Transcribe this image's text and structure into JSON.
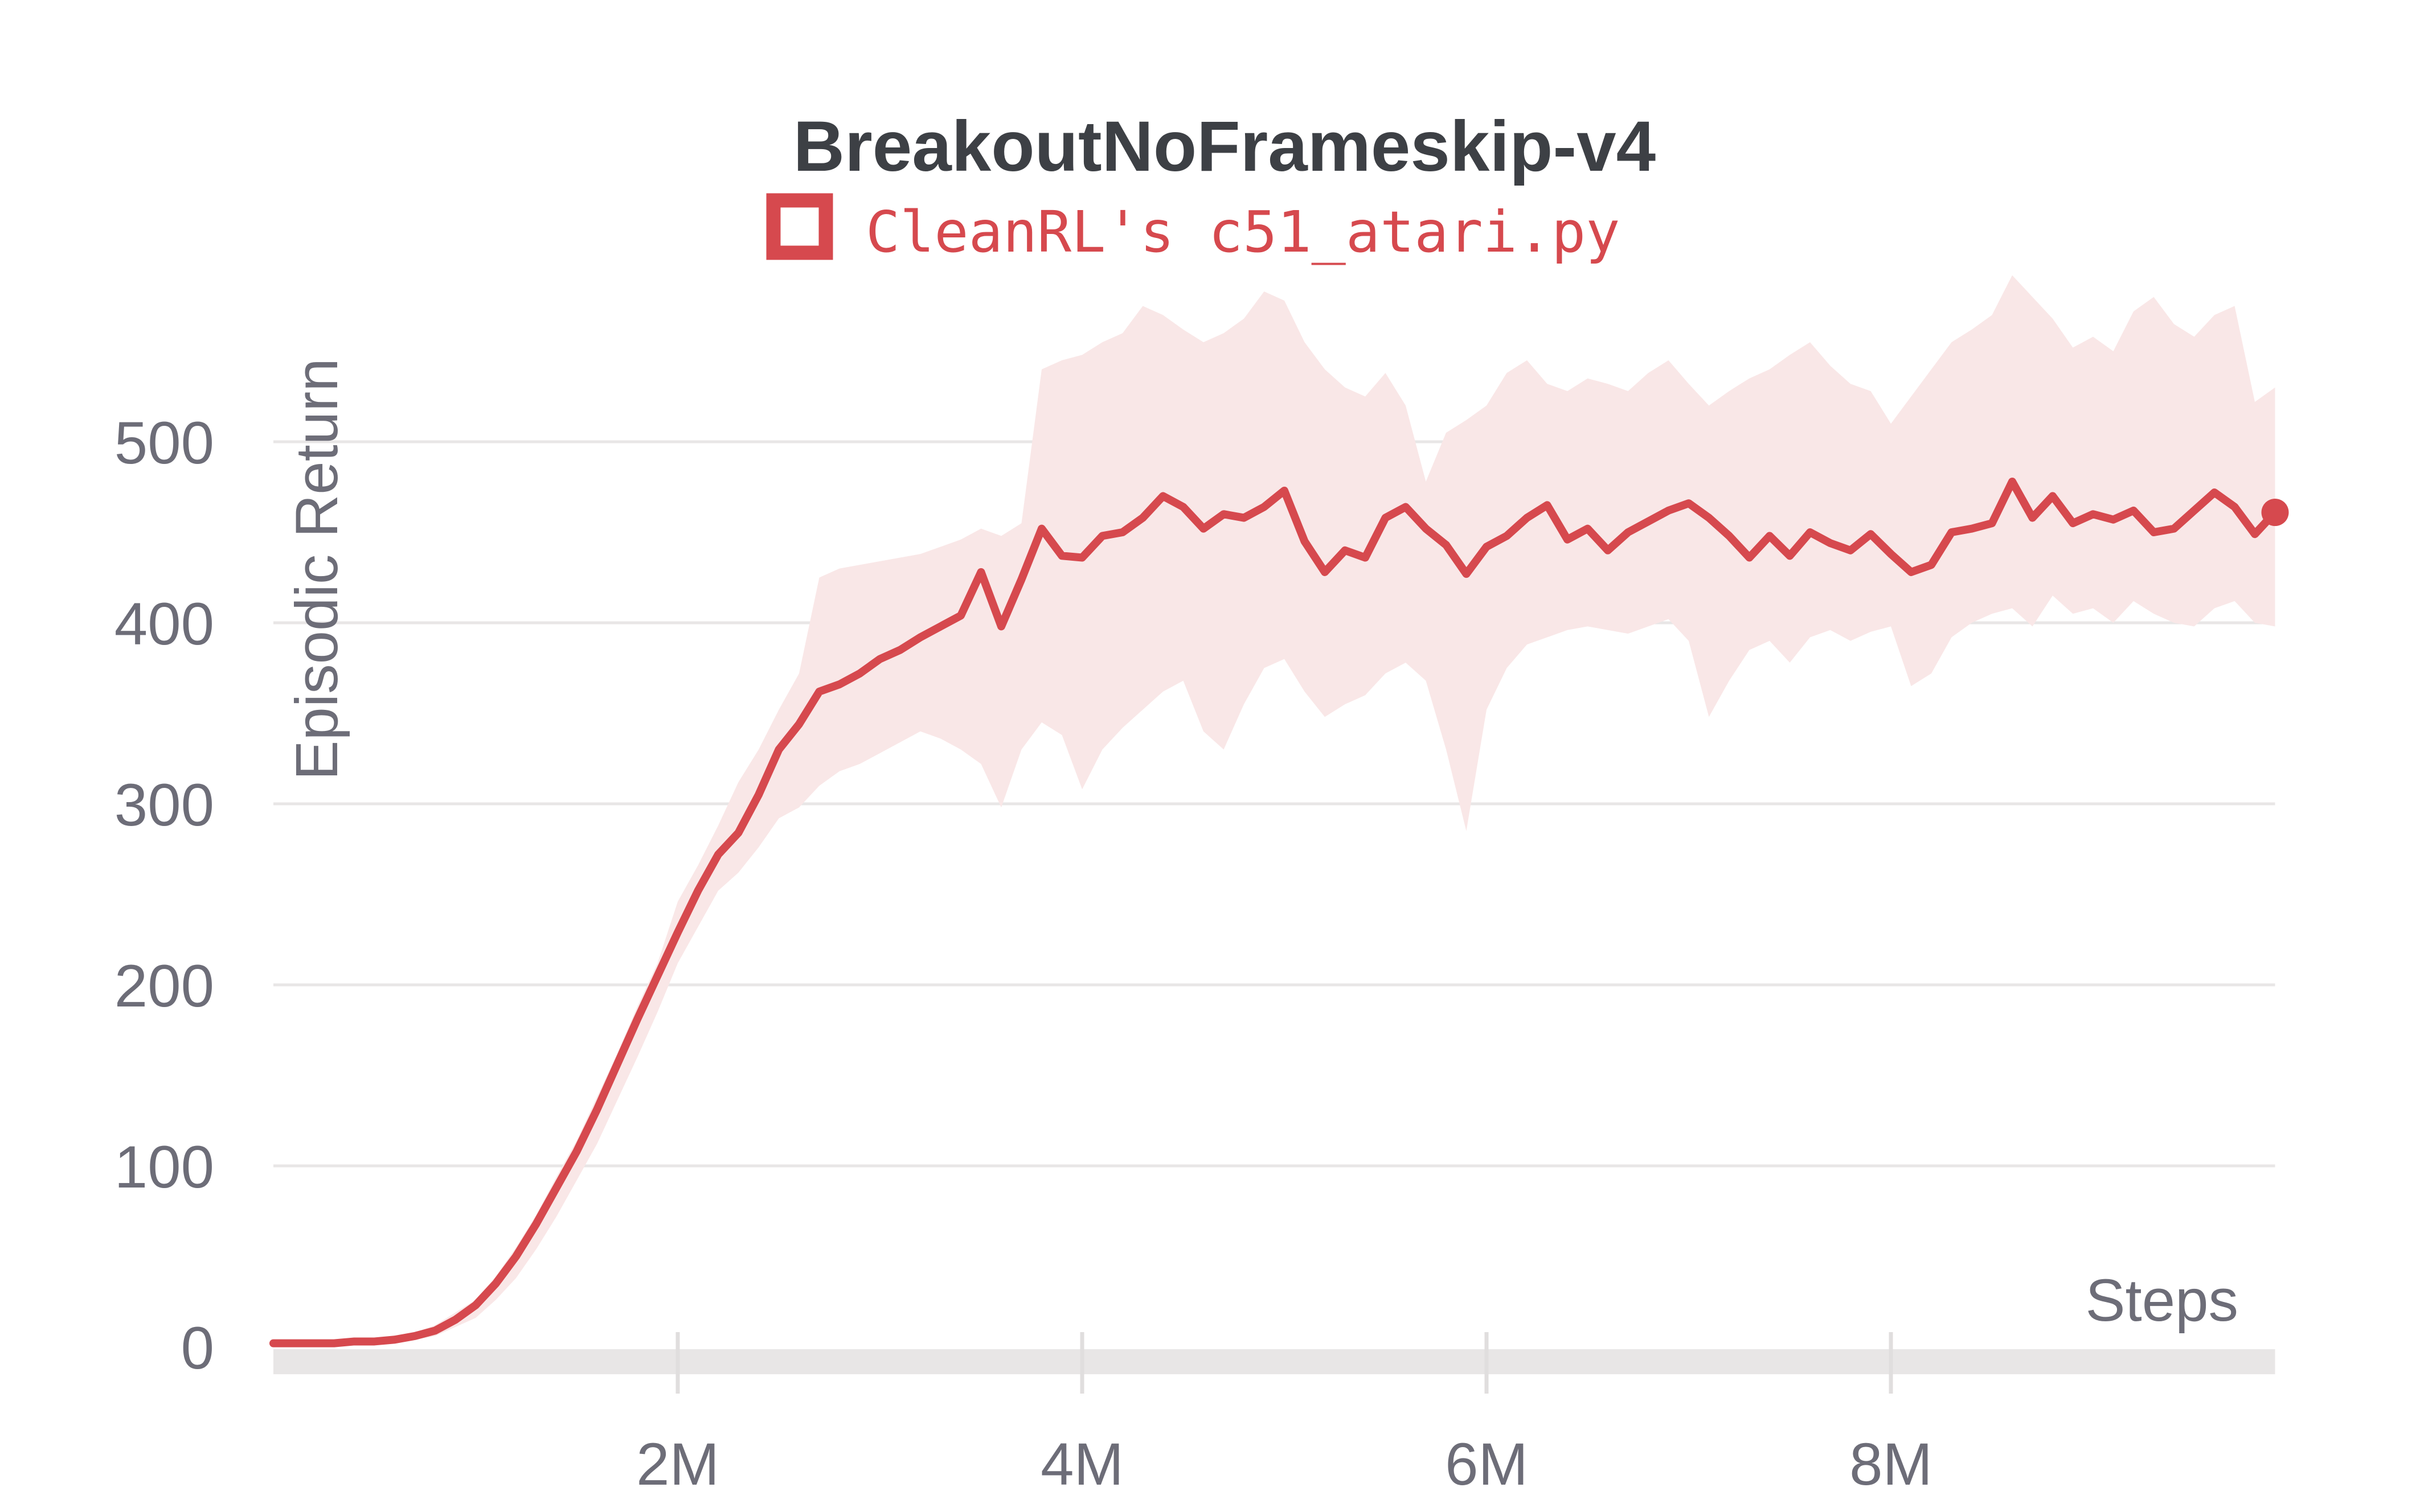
{
  "page": {
    "background": "#ffffff"
  },
  "chart_data": {
    "type": "line",
    "title": "BreakoutNoFrameskip-v4",
    "legend": {
      "label": "CleanRL's c51_atari.py",
      "marker": "hollow-square",
      "color": "#d6494e",
      "position": "top-center"
    },
    "xlabel": "Steps",
    "ylabel": "Episodic Return",
    "grid": "horizontal",
    "x_unit": "steps (millions)",
    "xlim_m": [
      0,
      10.3
    ],
    "ylim": [
      0,
      600
    ],
    "x_ticks": [
      {
        "value_m": 2,
        "label": "2M"
      },
      {
        "value_m": 4,
        "label": "4M"
      },
      {
        "value_m": 6,
        "label": "6M"
      },
      {
        "value_m": 8,
        "label": "8M"
      }
    ],
    "y_ticks": [
      {
        "value": 0,
        "label": "0"
      },
      {
        "value": 100,
        "label": "100"
      },
      {
        "value": 200,
        "label": "200"
      },
      {
        "value": 300,
        "label": "300"
      },
      {
        "value": 400,
        "label": "400"
      },
      {
        "value": 500,
        "label": "500"
      }
    ],
    "colors": {
      "line": "#d6494e",
      "band": "#f9e7e7",
      "grid": "#e8e6e6",
      "spine": "#e8e6e6",
      "tick_text": "#6d6d78",
      "title_text": "#3d4045"
    },
    "series": {
      "name": "CleanRL's c51_atari.py",
      "smoothed_mean_with_confidence_band": true,
      "x_m": [
        0.0,
        0.1,
        0.2,
        0.3,
        0.4,
        0.5,
        0.6,
        0.7,
        0.8,
        0.9,
        1.0,
        1.1,
        1.2,
        1.3,
        1.4,
        1.5,
        1.6,
        1.7,
        1.8,
        1.9,
        2.0,
        2.1,
        2.2,
        2.3,
        2.4,
        2.5,
        2.6,
        2.7,
        2.8,
        2.9,
        3.0,
        3.1,
        3.2,
        3.3,
        3.4,
        3.5,
        3.6,
        3.7,
        3.8,
        3.9,
        4.0,
        4.1,
        4.2,
        4.3,
        4.4,
        4.5,
        4.6,
        4.7,
        4.8,
        4.9,
        5.0,
        5.1,
        5.2,
        5.3,
        5.4,
        5.5,
        5.6,
        5.7,
        5.8,
        5.9,
        6.0,
        6.1,
        6.2,
        6.3,
        6.4,
        6.5,
        6.6,
        6.7,
        6.8,
        6.9,
        7.0,
        7.1,
        7.2,
        7.3,
        7.4,
        7.5,
        7.6,
        7.7,
        7.8,
        7.9,
        8.0,
        8.1,
        8.2,
        8.3,
        8.4,
        8.5,
        8.6,
        8.7,
        8.8,
        8.9,
        9.0,
        9.1,
        9.2,
        9.3,
        9.4,
        9.5,
        9.6,
        9.7,
        9.8,
        9.9
      ],
      "mean": [
        2,
        2,
        2,
        2,
        3,
        3,
        4,
        6,
        9,
        15,
        23,
        35,
        50,
        68,
        88,
        108,
        131,
        156,
        181,
        205,
        229,
        252,
        272,
        284,
        305,
        330,
        344,
        362,
        366,
        372,
        380,
        385,
        392,
        398,
        404,
        428,
        398,
        424,
        452,
        437,
        436,
        448,
        450,
        458,
        470,
        464,
        452,
        460,
        458,
        464,
        473,
        445,
        428,
        440,
        436,
        458,
        464,
        452,
        443,
        427,
        442,
        448,
        458,
        465,
        446,
        452,
        440,
        450,
        456,
        462,
        466,
        458,
        448,
        436,
        448,
        437,
        450,
        444,
        440,
        449,
        438,
        428,
        432,
        450,
        452,
        455,
        478,
        458,
        470,
        455,
        460,
        457,
        462,
        450,
        452,
        462,
        472,
        464,
        449,
        461
      ],
      "upper": [
        3,
        3,
        3,
        3,
        4,
        4,
        5,
        8,
        12,
        19,
        26,
        39,
        55,
        73,
        94,
        114,
        138,
        162,
        188,
        212,
        246,
        266,
        288,
        312,
        330,
        352,
        372,
        425,
        430,
        432,
        434,
        436,
        438,
        442,
        446,
        452,
        448,
        455,
        540,
        545,
        548,
        555,
        560,
        575,
        570,
        562,
        555,
        560,
        568,
        583,
        578,
        555,
        540,
        530,
        525,
        538,
        520,
        478,
        505,
        512,
        520,
        538,
        545,
        532,
        528,
        535,
        532,
        528,
        538,
        545,
        532,
        520,
        528,
        535,
        540,
        548,
        555,
        542,
        532,
        528,
        510,
        525,
        540,
        555,
        562,
        570,
        592,
        580,
        568,
        552,
        558,
        550,
        572,
        580,
        565,
        558,
        570,
        575,
        522,
        530
      ],
      "lower": [
        1,
        1,
        1,
        1,
        2,
        2,
        3,
        4,
        6,
        11,
        16,
        26,
        38,
        54,
        72,
        92,
        112,
        136,
        160,
        185,
        212,
        232,
        252,
        262,
        276,
        292,
        298,
        310,
        318,
        322,
        328,
        334,
        340,
        336,
        330,
        322,
        298,
        330,
        345,
        338,
        308,
        330,
        342,
        352,
        362,
        368,
        340,
        330,
        355,
        375,
        380,
        362,
        348,
        355,
        360,
        372,
        378,
        368,
        330,
        285,
        352,
        375,
        388,
        392,
        396,
        398,
        396,
        394,
        398,
        402,
        390,
        348,
        368,
        385,
        390,
        378,
        392,
        396,
        390,
        395,
        398,
        365,
        372,
        392,
        400,
        405,
        408,
        398,
        415,
        405,
        408,
        400,
        412,
        405,
        400,
        398,
        408,
        412,
        400,
        398
      ],
      "end_dot": {
        "x_m": 9.9,
        "value": 461
      }
    }
  }
}
